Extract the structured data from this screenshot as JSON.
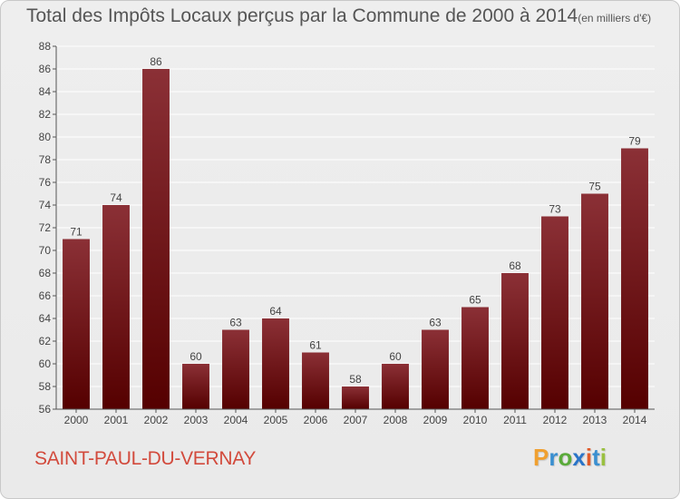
{
  "chart_data": {
    "type": "bar",
    "title": "Total des Impôts Locaux perçus par la Commune de 2000 à 2014",
    "unit_label": "(en milliers d'€)",
    "categories": [
      "2000",
      "2001",
      "2002",
      "2003",
      "2004",
      "2005",
      "2006",
      "2007",
      "2008",
      "2009",
      "2010",
      "2011",
      "2012",
      "2013",
      "2014"
    ],
    "values": [
      71,
      74,
      86,
      60,
      63,
      64,
      61,
      58,
      60,
      63,
      65,
      68,
      73,
      75,
      79
    ],
    "ylim": [
      56,
      88
    ],
    "yticks": [
      56,
      58,
      60,
      62,
      64,
      66,
      68,
      70,
      72,
      74,
      76,
      78,
      80,
      82,
      84,
      86,
      88
    ],
    "grid": true,
    "xlabel": "",
    "ylabel": ""
  },
  "commune": "SAINT-PAUL-DU-VERNAY",
  "logo": {
    "p": "P",
    "r": "r",
    "o": "o",
    "x": "x",
    "i1": "i",
    "t": "t",
    "i2": "i"
  },
  "colors": {
    "bar_top": "#8b3036",
    "bar_bottom": "#550000",
    "commune": "#d24a3c",
    "grid": "#ffffff"
  }
}
